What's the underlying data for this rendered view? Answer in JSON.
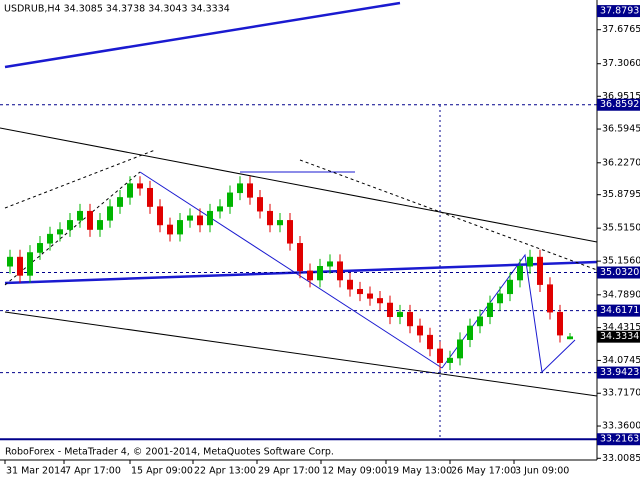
{
  "chart_data": {
    "type": "candlestick",
    "header": "USDRUB,H4  34.3085 34.3738 34.3043 34.3334",
    "footer": "RoboForex - MetaTrader 4, © 2001-2014, MetaQuotes Software Corp.",
    "up_color": "#00b400",
    "down_color": "#e00000",
    "candles": {
      "open": [
        35.1,
        35.2,
        35.0,
        35.25,
        35.35,
        35.45,
        35.5,
        35.6,
        35.7,
        35.5,
        35.6,
        35.75,
        35.85,
        36.0,
        35.95,
        35.75,
        35.55,
        35.45,
        35.6,
        35.65,
        35.55,
        35.7,
        35.75,
        35.9,
        36.0,
        35.85,
        35.7,
        35.55,
        35.6,
        35.35,
        35.05,
        34.95,
        35.1,
        35.15,
        34.95,
        34.85,
        34.8,
        34.75,
        34.7,
        34.55,
        34.6,
        34.45,
        34.35,
        34.2,
        34.05,
        34.1,
        34.3,
        34.45,
        34.55,
        34.7,
        34.8,
        34.95,
        35.1,
        35.2,
        34.9,
        34.6,
        34.3085
      ],
      "high": [
        35.28,
        35.28,
        35.33,
        35.43,
        35.53,
        35.58,
        35.68,
        35.78,
        35.78,
        35.68,
        35.83,
        35.93,
        36.08,
        36.08,
        36.03,
        35.83,
        35.63,
        35.68,
        35.73,
        35.73,
        35.78,
        35.83,
        35.98,
        36.08,
        36.08,
        35.93,
        35.78,
        35.68,
        35.68,
        35.43,
        35.13,
        35.18,
        35.23,
        35.23,
        35.03,
        34.93,
        34.88,
        34.83,
        34.78,
        34.68,
        34.68,
        34.53,
        34.43,
        34.28,
        34.18,
        34.38,
        34.53,
        34.63,
        34.78,
        34.88,
        35.03,
        35.18,
        35.28,
        35.28,
        34.98,
        34.68,
        34.3738
      ],
      "low": [
        35.02,
        34.92,
        34.92,
        35.17,
        35.27,
        35.37,
        35.42,
        35.52,
        35.42,
        35.42,
        35.52,
        35.67,
        35.77,
        35.87,
        35.67,
        35.47,
        35.37,
        35.37,
        35.52,
        35.47,
        35.47,
        35.62,
        35.67,
        35.82,
        35.77,
        35.62,
        35.47,
        35.47,
        35.27,
        34.97,
        34.87,
        34.87,
        35.02,
        34.87,
        34.77,
        34.72,
        34.67,
        34.62,
        34.47,
        34.47,
        34.37,
        34.27,
        34.12,
        33.97,
        33.97,
        34.02,
        34.22,
        34.37,
        34.47,
        34.62,
        34.72,
        34.87,
        35.02,
        34.82,
        34.52,
        34.27,
        34.3043
      ],
      "close": [
        35.2,
        35.0,
        35.25,
        35.35,
        35.45,
        35.5,
        35.6,
        35.7,
        35.5,
        35.6,
        35.75,
        35.85,
        36.0,
        35.95,
        35.75,
        35.55,
        35.45,
        35.6,
        35.65,
        35.55,
        35.7,
        35.75,
        35.9,
        36.0,
        35.85,
        35.7,
        35.55,
        35.6,
        35.35,
        35.05,
        34.95,
        35.1,
        35.15,
        34.95,
        34.85,
        34.8,
        34.75,
        34.7,
        34.55,
        34.6,
        34.45,
        34.35,
        34.2,
        34.05,
        34.1,
        34.3,
        34.45,
        34.55,
        34.7,
        34.8,
        34.95,
        35.1,
        35.2,
        34.9,
        34.6,
        34.35,
        34.3334
      ]
    },
    "xlim": [
      -1,
      58.7
    ],
    "xticks": [
      {
        "value": -0.5,
        "label": "31 Mar 2014"
      },
      {
        "value": 5.4,
        "label": "7 Apr 17:00"
      },
      {
        "value": 12,
        "label": "15 Apr 09:00"
      },
      {
        "value": 18.3,
        "label": "22 Apr 13:00"
      },
      {
        "value": 24.7,
        "label": "29 Apr 17:00"
      },
      {
        "value": 31.1,
        "label": "12 May 09:00"
      },
      {
        "value": 37.6,
        "label": "19 May 13:00"
      },
      {
        "value": 44,
        "label": "26 May 17:00"
      },
      {
        "value": 50.4,
        "label": "3 Jun 09:00"
      }
    ],
    "ylim": [
      32.99,
      38.0
    ],
    "yticks": [
      37.6765,
      {
        "value": 37.306,
        "label": "37.3060"
      },
      36.9515,
      36.5945,
      {
        "value": 36.227,
        "label": "36.2270"
      },
      35.8795,
      {
        "value": 35.515,
        "label": "35.5150"
      },
      {
        "value": 35.156,
        "label": "35.1560"
      },
      {
        "value": 34.789,
        "label": "34.7890"
      },
      34.4315,
      34.0745,
      {
        "value": 33.717,
        "label": "33.7170"
      },
      {
        "value": 33.36,
        "label": "33.3600"
      },
      33.0085
    ],
    "levels": [
      {
        "value": 37.8793,
        "style": "none",
        "color": "#00008b"
      },
      {
        "value": 36.8592,
        "style": "dashed",
        "color": "#00008b"
      },
      {
        "value": 35.032,
        "label": "35.0320",
        "style": "dashed",
        "color": "#00008b"
      },
      {
        "value": 34.6171,
        "style": "dashed",
        "color": "#00008b"
      },
      {
        "value": 34.3334,
        "style": "none",
        "color": "#000000"
      },
      {
        "value": 33.9423,
        "style": "dashed",
        "color": "#00008b"
      },
      {
        "value": 33.2163,
        "style": "solid",
        "color": "#00008b"
      }
    ]
  }
}
